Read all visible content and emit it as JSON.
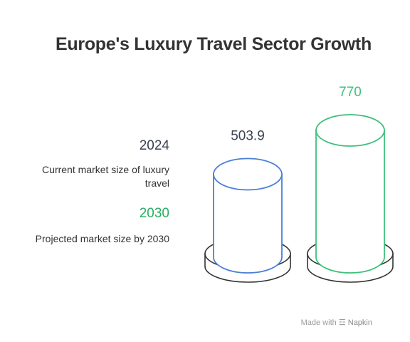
{
  "chart_data": {
    "type": "bar",
    "title": "Europe's Luxury Travel Sector Growth",
    "categories": [
      "2024",
      "2030"
    ],
    "values": [
      503.9,
      770
    ],
    "value_labels": [
      "503.9",
      "770"
    ],
    "descriptions": [
      "Current market size of luxury travel",
      "Projected market size by 2030"
    ],
    "colors": [
      "#4a7fd6",
      "#3cc07a"
    ],
    "label_colors": [
      "#3a4252",
      "#3cc07a"
    ]
  },
  "watermark": {
    "prefix": "Made with",
    "brand": "Napkin"
  }
}
